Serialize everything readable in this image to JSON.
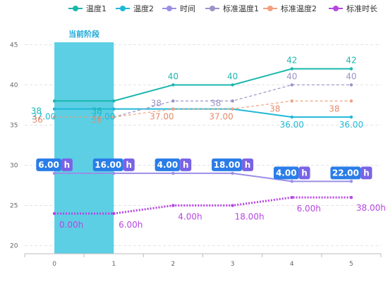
{
  "chart_data": {
    "type": "line",
    "x": [
      "0",
      "1",
      "2",
      "3",
      "4",
      "5"
    ],
    "ylim": [
      19,
      46
    ],
    "yticks": [
      20,
      25,
      30,
      35,
      40,
      45
    ],
    "grid": true,
    "legend_position": "top-right",
    "highlight": {
      "label": "当前阶段",
      "from": 0,
      "to": 1,
      "color": "#5ccfe4"
    },
    "series": [
      {
        "name": "温度1",
        "color": "#1bb7ad",
        "style": "solid",
        "marker": "dot",
        "values": [
          38,
          38,
          40,
          40,
          42,
          42
        ],
        "labels": [
          "38",
          "38",
          "40",
          "40",
          "42",
          "42"
        ],
        "label_color": "#1bb7ad"
      },
      {
        "name": "温度2",
        "color": "#20b8d8",
        "style": "solid",
        "marker": "dot",
        "values": [
          37,
          37,
          37,
          37,
          36,
          36
        ],
        "labels": [
          "37.00",
          "37.00",
          "",
          "",
          "36.00",
          "36.00"
        ],
        "label_color": "#20b8d8"
      },
      {
        "name": "时间",
        "color": "#9a8fe6",
        "style": "solid",
        "marker": "dot",
        "values": [
          29,
          29,
          29,
          29,
          28,
          28
        ],
        "badges": [
          "6.00",
          "16.00",
          "4.00",
          "18.00",
          "4.00",
          "22.00"
        ],
        "badge_unit": "h",
        "badge_color": "#2a7de8",
        "badge_unit_color": "#7a63e6"
      },
      {
        "name": "标准温度1",
        "color": "#9d93c7",
        "style": "dashed",
        "marker": "dot",
        "values": [
          36,
          36,
          38,
          38,
          40,
          40
        ],
        "labels": [
          "",
          "",
          "38",
          "38",
          "40",
          "40"
        ],
        "label_color": "#9d93c7"
      },
      {
        "name": "标准温度2",
        "color": "#f0a27f",
        "style": "dashed",
        "marker": "dot",
        "values": [
          36,
          36,
          37,
          37,
          38,
          38
        ],
        "labels": [
          "36",
          "36",
          "37.00",
          "37.00",
          "38",
          "38"
        ],
        "label_color": "#e58b6a"
      },
      {
        "name": "标准时长",
        "color": "#b646e2",
        "style": "dotted",
        "marker": "dot",
        "values": [
          24,
          24,
          25,
          25,
          26,
          26
        ],
        "labels": [
          "0.00h",
          "6.00h",
          "4.00h",
          "18.00h",
          "6.00h",
          "38.00h"
        ],
        "label_color": "#b646e2"
      }
    ]
  }
}
